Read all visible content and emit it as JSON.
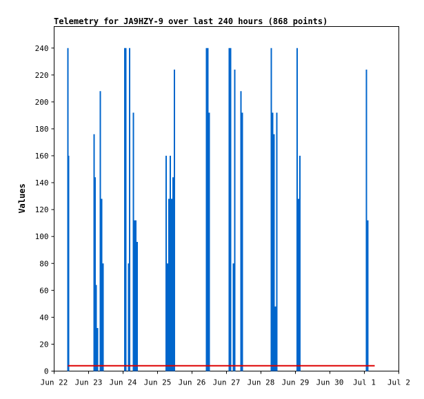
{
  "chart_data": {
    "type": "bar",
    "title": "Telemetry for JA9HZY-9 over last 240 hours (868 points)",
    "xlabel": "",
    "ylabel": "Values",
    "xlim": [
      0,
      10
    ],
    "ylim": [
      0,
      256
    ],
    "x_ticks": [
      {
        "pos": 0,
        "label": "Jun 22"
      },
      {
        "pos": 1,
        "label": "Jun 23"
      },
      {
        "pos": 2,
        "label": "Jun 24"
      },
      {
        "pos": 3,
        "label": "Jun 25"
      },
      {
        "pos": 4,
        "label": "Jun 26"
      },
      {
        "pos": 5,
        "label": "Jun 27"
      },
      {
        "pos": 6,
        "label": "Jun 28"
      },
      {
        "pos": 7,
        "label": "Jun 29"
      },
      {
        "pos": 8,
        "label": "Jun 30"
      },
      {
        "pos": 9,
        "label": "Jul 1"
      },
      {
        "pos": 10,
        "label": "Jul 2"
      }
    ],
    "y_ticks": [
      0,
      20,
      40,
      60,
      80,
      100,
      120,
      140,
      160,
      180,
      200,
      220,
      240
    ],
    "grid": false,
    "series": [
      {
        "type": "bar",
        "color": "#0066cc",
        "points": [
          {
            "x": 0.4,
            "y": 240
          },
          {
            "x": 0.42,
            "y": 160
          },
          {
            "x": 1.16,
            "y": 176
          },
          {
            "x": 1.19,
            "y": 144
          },
          {
            "x": 1.22,
            "y": 64
          },
          {
            "x": 1.26,
            "y": 32
          },
          {
            "x": 1.34,
            "y": 208
          },
          {
            "x": 1.38,
            "y": 128
          },
          {
            "x": 1.42,
            "y": 80
          },
          {
            "x": 2.05,
            "y": 240
          },
          {
            "x": 2.08,
            "y": 240
          },
          {
            "x": 2.16,
            "y": 80
          },
          {
            "x": 2.19,
            "y": 240
          },
          {
            "x": 2.3,
            "y": 192
          },
          {
            "x": 2.34,
            "y": 112
          },
          {
            "x": 2.37,
            "y": 112
          },
          {
            "x": 2.41,
            "y": 96
          },
          {
            "x": 3.25,
            "y": 160
          },
          {
            "x": 3.29,
            "y": 80
          },
          {
            "x": 3.33,
            "y": 128
          },
          {
            "x": 3.37,
            "y": 160
          },
          {
            "x": 3.41,
            "y": 128
          },
          {
            "x": 3.45,
            "y": 144
          },
          {
            "x": 3.49,
            "y": 224
          },
          {
            "x": 4.42,
            "y": 240
          },
          {
            "x": 4.46,
            "y": 240
          },
          {
            "x": 4.5,
            "y": 192
          },
          {
            "x": 5.08,
            "y": 240
          },
          {
            "x": 5.12,
            "y": 240
          },
          {
            "x": 5.2,
            "y": 80
          },
          {
            "x": 5.24,
            "y": 224
          },
          {
            "x": 5.42,
            "y": 208
          },
          {
            "x": 5.46,
            "y": 192
          },
          {
            "x": 6.3,
            "y": 240
          },
          {
            "x": 6.34,
            "y": 192
          },
          {
            "x": 6.38,
            "y": 176
          },
          {
            "x": 6.42,
            "y": 48
          },
          {
            "x": 6.46,
            "y": 192
          },
          {
            "x": 7.05,
            "y": 240
          },
          {
            "x": 7.09,
            "y": 128
          },
          {
            "x": 7.13,
            "y": 160
          },
          {
            "x": 9.06,
            "y": 224
          },
          {
            "x": 9.1,
            "y": 112
          }
        ]
      },
      {
        "type": "line",
        "color": "#dd0000",
        "points": [
          {
            "x": 0.4,
            "y": 4
          },
          {
            "x": 9.3,
            "y": 4
          }
        ]
      }
    ]
  }
}
